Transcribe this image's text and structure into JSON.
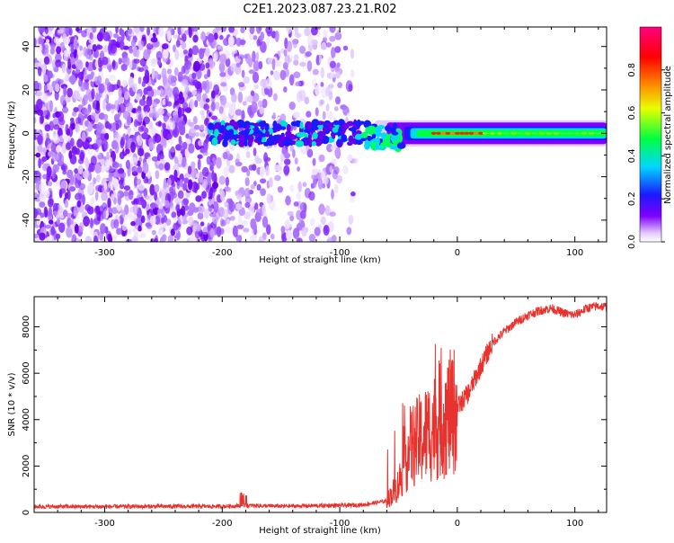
{
  "title": "C2E1.2023.087.23.21.R02",
  "chart_data": [
    {
      "type": "heatmap",
      "title": "",
      "xlabel": "Height of straight line (km)",
      "ylabel": "Frequency (Hz)",
      "xlim": [
        -360,
        127
      ],
      "ylim": [
        -50,
        49
      ],
      "x_ticks": [
        -300,
        -200,
        -100,
        0,
        100
      ],
      "y_ticks": [
        -40,
        -20,
        0,
        20,
        40
      ],
      "colorbar": {
        "label": "Normalized spectral amplitude",
        "range": [
          0,
          1
        ],
        "ticks": [
          0.0,
          0.2,
          0.4,
          0.6,
          0.8
        ],
        "tick_labels": [
          "0.0",
          "0.2",
          "0.4",
          "0.6",
          "0.8"
        ],
        "colors": [
          "#ffffff",
          "#e4ccff",
          "#8000ff",
          "#1a1aff",
          "#00d8ff",
          "#00ff40",
          "#e8ff00",
          "#ff8000",
          "#ff0000",
          "#ff0080"
        ]
      },
      "description_values": {
        "noise_region_x": [
          -360,
          -90
        ],
        "signal_track_x": [
          -90,
          127
        ],
        "signal_track_frequency": 0,
        "peak_amplitude_x": [
          -20,
          20
        ]
      }
    },
    {
      "type": "line",
      "title": "",
      "xlabel": "Height of straight line (km)",
      "ylabel": "SNR (10 * v/v)",
      "xlim": [
        -360,
        127
      ],
      "ylim": [
        0,
        9300
      ],
      "x_ticks": [
        -300,
        -200,
        -100,
        0,
        100
      ],
      "y_ticks": [
        0,
        2000,
        4000,
        6000,
        8000
      ],
      "series": [
        {
          "color": "#e8322d",
          "x": [
            -360,
            -300,
            -250,
            -200,
            -180,
            -150,
            -100,
            -80,
            -60,
            -50,
            -45,
            -40,
            -30,
            -20,
            -10,
            0,
            10,
            20,
            30,
            40,
            50,
            60,
            70,
            80,
            90,
            100,
            110,
            120,
            127
          ],
          "y": [
            250,
            250,
            260,
            260,
            300,
            270,
            300,
            330,
            500,
            1200,
            2200,
            2800,
            3200,
            3700,
            4100,
            4500,
            5200,
            6300,
            7300,
            7800,
            8200,
            8500,
            8700,
            8800,
            8600,
            8500,
            8800,
            8900,
            8850
          ]
        }
      ]
    }
  ]
}
